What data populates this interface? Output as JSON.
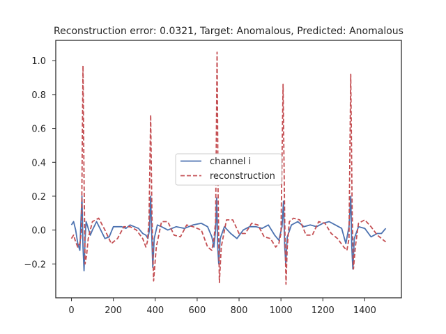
{
  "chart_data": {
    "type": "line",
    "title": "Reconstruction error: 0.0321, Target: Anomalous, Predicted: Anomalous",
    "xlabel": "",
    "ylabel": "",
    "xlim": [
      -75,
      1575
    ],
    "ylim": [
      -0.4,
      1.12
    ],
    "xticks": [
      0,
      200,
      400,
      600,
      800,
      1000,
      1200,
      1400
    ],
    "xtick_labels": [
      "0",
      "200",
      "400",
      "600",
      "800",
      "1000",
      "1200",
      "1400"
    ],
    "yticks": [
      -0.2,
      0.0,
      0.2,
      0.4,
      0.6,
      0.8,
      1.0
    ],
    "ytick_labels": [
      "−0.2",
      "0.0",
      "0.2",
      "0.4",
      "0.6",
      "0.8",
      "1.0"
    ],
    "grid": false,
    "legend_position": "center",
    "colors": {
      "channel": "#4c72b0",
      "reconstruction": "#c44e52",
      "axes": "#262626"
    },
    "series": [
      {
        "name": "channel i",
        "style": "solid",
        "x": [
          0,
          10,
          20,
          30,
          40,
          45,
          50,
          55,
          60,
          65,
          70,
          80,
          90,
          100,
          120,
          140,
          160,
          180,
          200,
          220,
          240,
          260,
          280,
          300,
          320,
          340,
          355,
          365,
          372,
          378,
          383,
          388,
          395,
          410,
          430,
          460,
          500,
          540,
          580,
          620,
          650,
          670,
          680,
          688,
          693,
          698,
          703,
          710,
          730,
          760,
          790,
          820,
          850,
          880,
          910,
          940,
          970,
          990,
          1005,
          1012,
          1018,
          1023,
          1030,
          1050,
          1080,
          1110,
          1140,
          1170,
          1200,
          1230,
          1260,
          1290,
          1310,
          1325,
          1333,
          1338,
          1343,
          1350,
          1370,
          1400,
          1430,
          1460,
          1480,
          1500
        ],
        "y": [
          0.03,
          0.05,
          0.0,
          -0.08,
          -0.12,
          0.05,
          0.2,
          -0.1,
          -0.24,
          -0.05,
          0.05,
          0.01,
          -0.03,
          0.0,
          0.05,
          0.0,
          -0.05,
          -0.04,
          0.02,
          0.02,
          0.02,
          0.01,
          0.03,
          0.02,
          0.01,
          -0.02,
          -0.03,
          -0.05,
          0.0,
          0.2,
          -0.02,
          -0.22,
          -0.05,
          0.03,
          0.02,
          0.0,
          0.02,
          0.01,
          0.03,
          0.04,
          0.02,
          -0.04,
          -0.1,
          0.0,
          0.19,
          -0.1,
          -0.2,
          -0.05,
          0.02,
          -0.02,
          -0.05,
          0.0,
          0.02,
          0.02,
          0.01,
          0.03,
          -0.03,
          -0.06,
          0.02,
          0.17,
          -0.1,
          -0.2,
          -0.04,
          0.03,
          0.05,
          0.02,
          0.03,
          0.02,
          0.04,
          0.05,
          0.03,
          0.01,
          -0.08,
          0.02,
          0.2,
          -0.1,
          -0.23,
          -0.05,
          0.02,
          0.01,
          -0.04,
          -0.02,
          -0.02,
          0.01
        ]
      },
      {
        "name": "reconstruction",
        "style": "dashed",
        "x": [
          0,
          10,
          20,
          30,
          40,
          48,
          55,
          60,
          65,
          72,
          80,
          100,
          130,
          160,
          190,
          220,
          250,
          280,
          310,
          340,
          355,
          362,
          370,
          378,
          384,
          392,
          405,
          430,
          460,
          490,
          520,
          550,
          580,
          620,
          650,
          670,
          680,
          688,
          695,
          700,
          706,
          715,
          740,
          770,
          800,
          830,
          860,
          890,
          920,
          950,
          975,
          990,
          1000,
          1010,
          1018,
          1024,
          1030,
          1040,
          1060,
          1090,
          1120,
          1150,
          1180,
          1210,
          1240,
          1270,
          1300,
          1315,
          1325,
          1333,
          1340,
          1346,
          1355,
          1370,
          1400,
          1430,
          1460,
          1490,
          1500
        ],
        "y": [
          -0.05,
          -0.03,
          -0.07,
          -0.1,
          -0.08,
          0.0,
          0.97,
          0.3,
          -0.2,
          -0.15,
          -0.05,
          0.05,
          0.07,
          0.0,
          -0.08,
          -0.05,
          0.02,
          0.02,
          0.0,
          -0.05,
          -0.1,
          -0.07,
          0.05,
          0.68,
          0.1,
          -0.3,
          -0.1,
          0.05,
          0.05,
          -0.03,
          -0.04,
          0.03,
          0.02,
          0.0,
          -0.1,
          -0.12,
          -0.05,
          0.05,
          1.05,
          0.2,
          -0.31,
          -0.1,
          0.06,
          0.06,
          -0.02,
          -0.02,
          0.04,
          0.03,
          -0.04,
          -0.05,
          -0.1,
          -0.08,
          -0.02,
          0.86,
          0.05,
          -0.32,
          -0.1,
          0.05,
          0.07,
          0.06,
          -0.03,
          -0.03,
          0.05,
          0.04,
          -0.02,
          -0.05,
          -0.1,
          -0.12,
          -0.05,
          0.92,
          0.1,
          -0.23,
          -0.1,
          0.04,
          0.06,
          0.02,
          -0.03,
          -0.06,
          -0.07
        ]
      }
    ]
  }
}
